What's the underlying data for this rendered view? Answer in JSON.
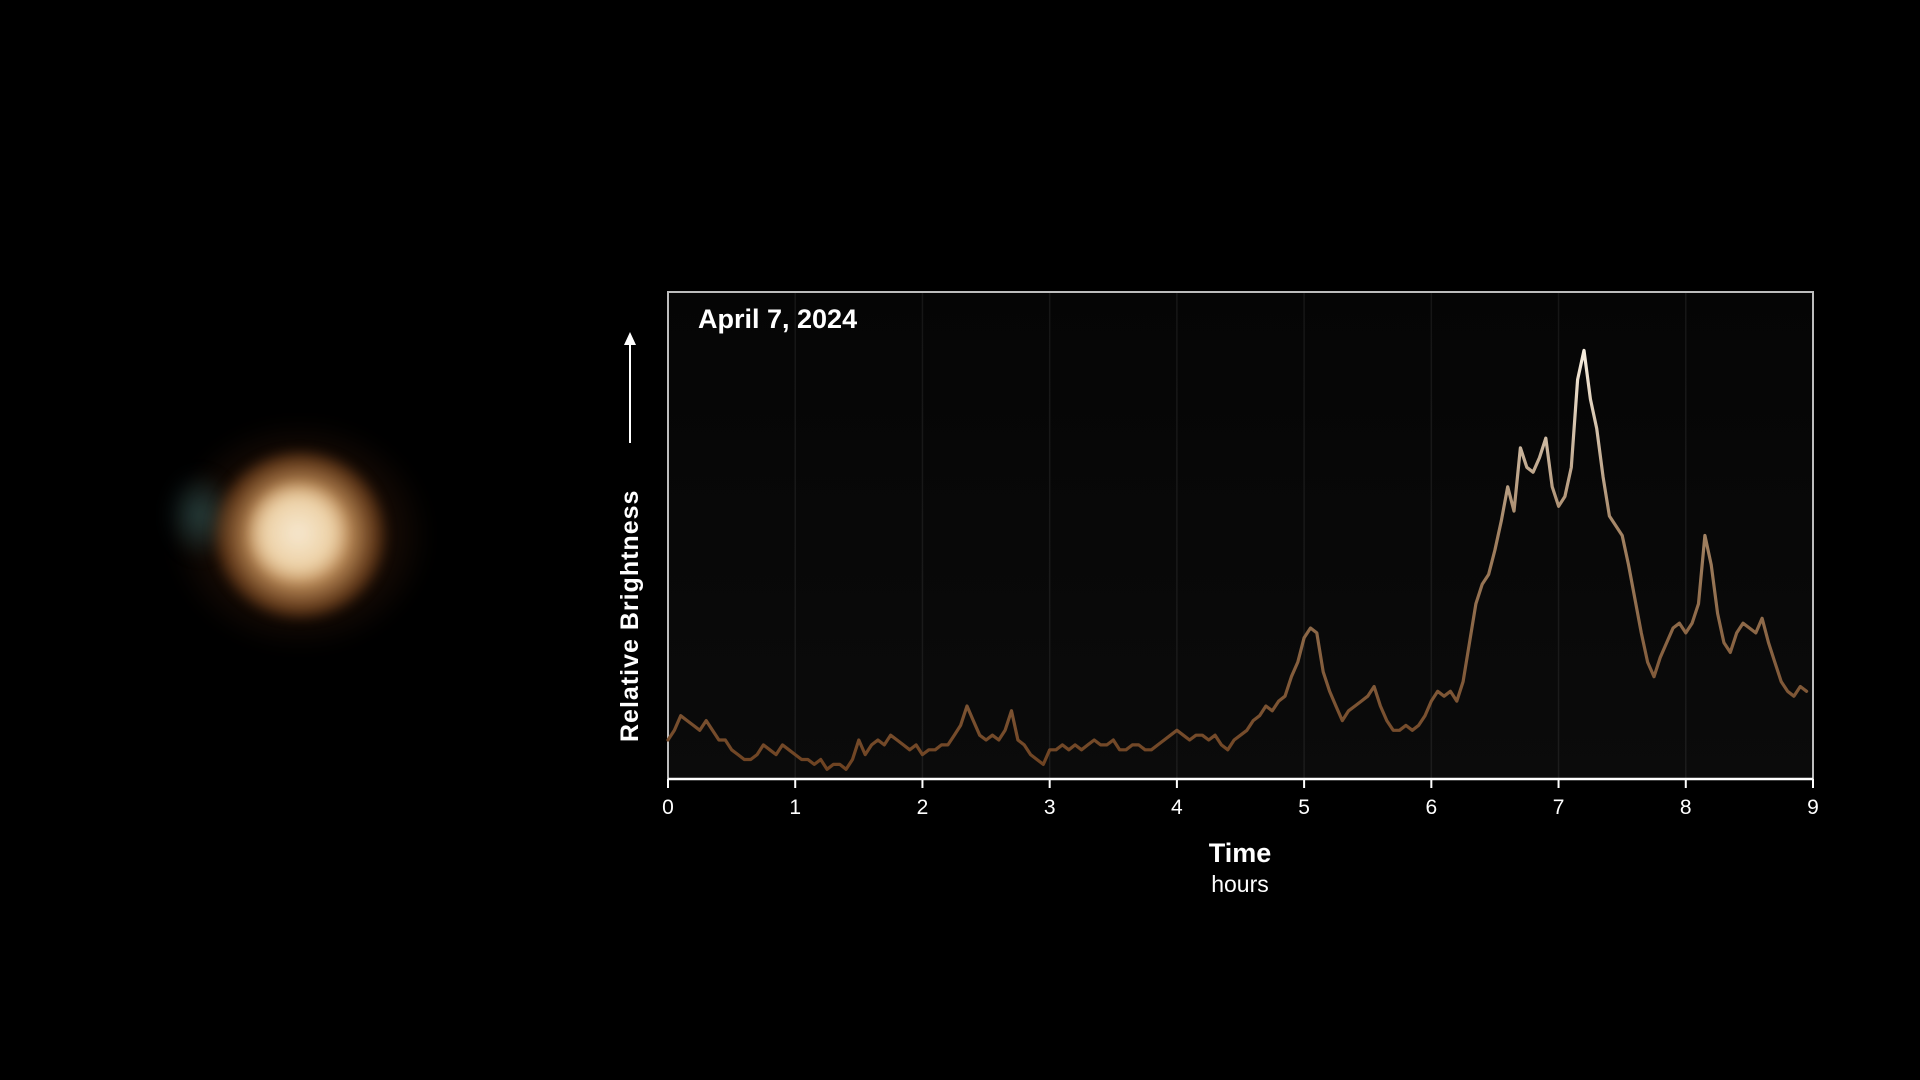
{
  "chart_data": {
    "type": "line",
    "title": "April 7, 2024",
    "xlabel": "Time",
    "xunit": "hours",
    "ylabel": "Relative Brightness",
    "xlim": [
      0,
      9
    ],
    "ylim": [
      0,
      1
    ],
    "x_ticks": [
      "0",
      "1",
      "2",
      "3",
      "4",
      "5",
      "6",
      "7",
      "8",
      "9"
    ],
    "grid": "vertical",
    "line_colors": {
      "low": "#6b3f1e",
      "mid": "#a08060",
      "high": "#fdf5e6"
    },
    "series": [
      {
        "x": [
          0.0,
          0.05,
          0.1,
          0.15,
          0.2,
          0.25,
          0.3,
          0.35,
          0.4,
          0.45,
          0.5,
          0.55,
          0.6,
          0.65,
          0.7,
          0.75,
          0.8,
          0.85,
          0.9,
          0.95,
          1.0,
          1.05,
          1.1,
          1.15,
          1.2,
          1.25,
          1.3,
          1.35,
          1.4,
          1.45,
          1.5,
          1.55,
          1.6,
          1.65,
          1.7,
          1.75,
          1.8,
          1.85,
          1.9,
          1.95,
          2.0,
          2.05,
          2.1,
          2.15,
          2.2,
          2.25,
          2.3,
          2.35,
          2.4,
          2.45,
          2.5,
          2.55,
          2.6,
          2.65,
          2.7,
          2.75,
          2.8,
          2.85,
          2.9,
          2.95,
          3.0,
          3.05,
          3.1,
          3.15,
          3.2,
          3.25,
          3.3,
          3.35,
          3.4,
          3.45,
          3.5,
          3.55,
          3.6,
          3.65,
          3.7,
          3.75,
          3.8,
          3.85,
          3.9,
          3.95,
          4.0,
          4.05,
          4.1,
          4.15,
          4.2,
          4.25,
          4.3,
          4.35,
          4.4,
          4.45,
          4.5,
          4.55,
          4.6,
          4.65,
          4.7,
          4.75,
          4.8,
          4.85,
          4.9,
          4.95,
          5.0,
          5.05,
          5.1,
          5.15,
          5.2,
          5.25,
          5.3,
          5.35,
          5.4,
          5.45,
          5.5,
          5.55,
          5.6,
          5.65,
          5.7,
          5.75,
          5.8,
          5.85,
          5.9,
          5.95,
          6.0,
          6.05,
          6.1,
          6.15,
          6.2,
          6.25,
          6.3,
          6.35,
          6.4,
          6.45,
          6.5,
          6.55,
          6.6,
          6.65,
          6.7,
          6.75,
          6.8,
          6.85,
          6.9,
          6.95,
          7.0,
          7.05,
          7.1,
          7.15,
          7.2,
          7.25,
          7.3,
          7.35,
          7.4,
          7.45,
          7.5,
          7.55,
          7.6,
          7.65,
          7.7,
          7.75,
          7.8,
          7.85,
          7.9,
          7.95,
          8.0,
          8.05,
          8.1,
          8.15,
          8.2,
          8.25,
          8.3,
          8.35,
          8.4,
          8.45,
          8.5,
          8.55,
          8.6,
          8.65,
          8.7,
          8.75,
          8.8,
          8.85,
          8.9,
          8.95
        ],
        "y": [
          0.08,
          0.1,
          0.13,
          0.12,
          0.11,
          0.1,
          0.12,
          0.1,
          0.08,
          0.08,
          0.06,
          0.05,
          0.04,
          0.04,
          0.05,
          0.07,
          0.06,
          0.05,
          0.07,
          0.06,
          0.05,
          0.04,
          0.04,
          0.03,
          0.04,
          0.02,
          0.03,
          0.03,
          0.02,
          0.04,
          0.08,
          0.05,
          0.07,
          0.08,
          0.07,
          0.09,
          0.08,
          0.07,
          0.06,
          0.07,
          0.05,
          0.06,
          0.06,
          0.07,
          0.07,
          0.09,
          0.11,
          0.15,
          0.12,
          0.09,
          0.08,
          0.09,
          0.08,
          0.1,
          0.14,
          0.08,
          0.07,
          0.05,
          0.04,
          0.03,
          0.06,
          0.06,
          0.07,
          0.06,
          0.07,
          0.06,
          0.07,
          0.08,
          0.07,
          0.07,
          0.08,
          0.06,
          0.06,
          0.07,
          0.07,
          0.06,
          0.06,
          0.07,
          0.08,
          0.09,
          0.1,
          0.09,
          0.08,
          0.09,
          0.09,
          0.08,
          0.09,
          0.07,
          0.06,
          0.08,
          0.09,
          0.1,
          0.12,
          0.13,
          0.15,
          0.14,
          0.16,
          0.17,
          0.21,
          0.24,
          0.29,
          0.31,
          0.3,
          0.22,
          0.18,
          0.15,
          0.12,
          0.14,
          0.15,
          0.16,
          0.17,
          0.19,
          0.15,
          0.12,
          0.1,
          0.1,
          0.11,
          0.1,
          0.11,
          0.13,
          0.16,
          0.18,
          0.17,
          0.18,
          0.16,
          0.2,
          0.28,
          0.36,
          0.4,
          0.42,
          0.47,
          0.53,
          0.6,
          0.55,
          0.68,
          0.64,
          0.63,
          0.66,
          0.7,
          0.6,
          0.56,
          0.58,
          0.64,
          0.82,
          0.88,
          0.78,
          0.72,
          0.62,
          0.54,
          0.52,
          0.5,
          0.44,
          0.37,
          0.3,
          0.24,
          0.21,
          0.25,
          0.28,
          0.31,
          0.32,
          0.3,
          0.32,
          0.36,
          0.5,
          0.44,
          0.34,
          0.28,
          0.26,
          0.3,
          0.32,
          0.31,
          0.3,
          0.33,
          0.28,
          0.24,
          0.2,
          0.18,
          0.17,
          0.19,
          0.18
        ]
      }
    ]
  }
}
